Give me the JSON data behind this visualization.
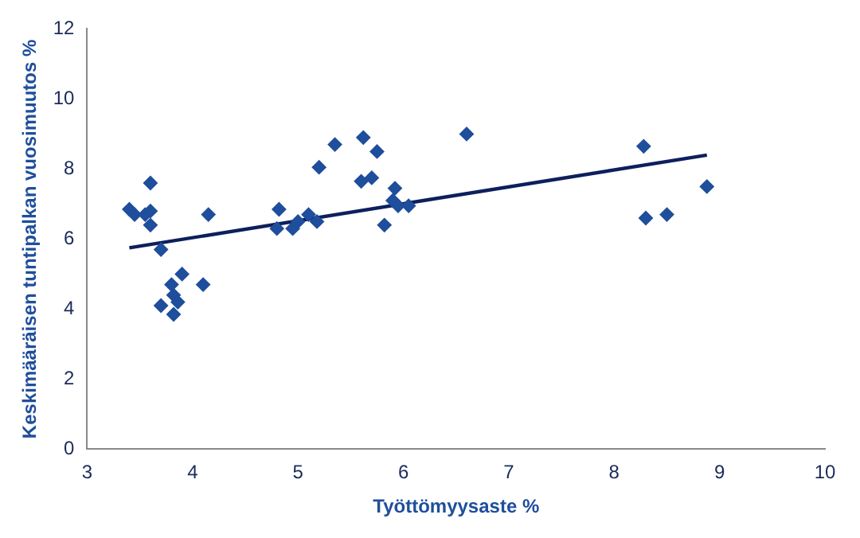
{
  "chart_data": {
    "type": "scatter",
    "xlabel": "Työttömyysaste %",
    "ylabel": "Keskimääräisen tuntipalkan vuosimuutos %",
    "xlim": [
      3,
      10
    ],
    "xticks": [
      3,
      4,
      5,
      6,
      7,
      8,
      9,
      10
    ],
    "ylim": [
      0,
      12
    ],
    "yticks": [
      0,
      2,
      4,
      6,
      8,
      10,
      12
    ],
    "grid": false,
    "legend": false,
    "marker": "diamond",
    "series": [
      {
        "type": "scatter",
        "color": "#1f4e9c",
        "x": [
          3.4,
          3.45,
          3.55,
          3.6,
          3.6,
          3.6,
          3.7,
          3.7,
          3.78,
          3.8,
          3.82,
          3.82,
          3.86,
          3.9,
          4.1,
          4.15,
          4.78,
          4.8,
          4.82,
          4.95,
          5.0,
          5.1,
          5.18,
          5.2,
          5.35,
          5.6,
          5.62,
          5.7,
          5.75,
          5.82,
          5.9,
          5.92,
          5.95,
          6.05,
          6.6,
          8.28,
          8.3,
          8.5,
          8.88
        ],
        "values": [
          6.85,
          6.7,
          6.7,
          6.8,
          6.4,
          7.6,
          5.7,
          4.1,
          null,
          4.7,
          4.4,
          3.85,
          4.2,
          5.0,
          4.7,
          6.7,
          null,
          6.3,
          6.85,
          6.3,
          6.5,
          6.7,
          6.5,
          8.05,
          8.7,
          7.65,
          8.9,
          7.75,
          8.5,
          6.4,
          7.1,
          7.45,
          6.95,
          6.95,
          9.0,
          8.65,
          6.6,
          6.7,
          7.5
        ]
      },
      {
        "type": "line",
        "color": "#0d1f5c",
        "x": [
          3.4,
          8.88
        ],
        "values": [
          5.75,
          8.4
        ],
        "marker": "none",
        "line_style": "solid"
      }
    ]
  }
}
